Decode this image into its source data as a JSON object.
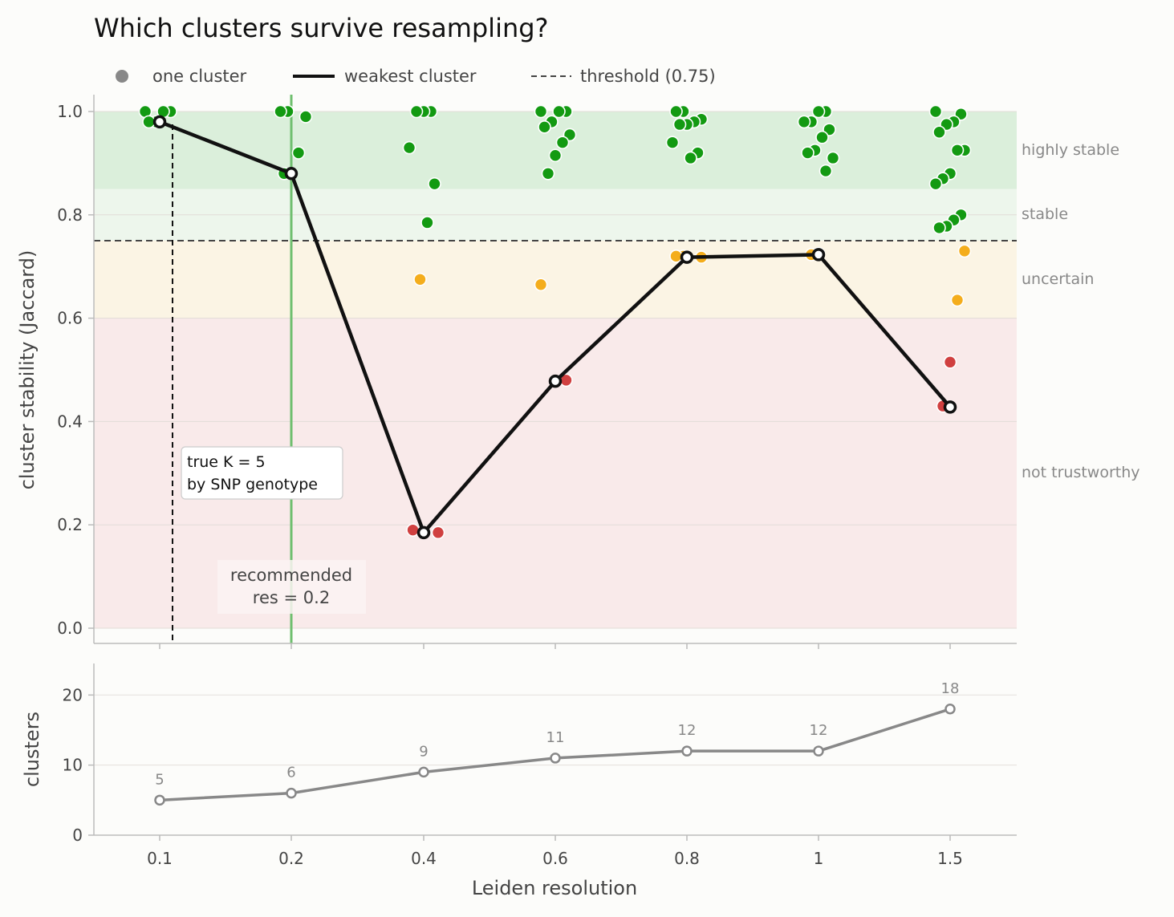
{
  "chart_data": {
    "type": "scatter",
    "title": "Which clusters survive resampling?",
    "legend": {
      "placement": "top-left",
      "entries": [
        {
          "label": "one cluster",
          "marker": "dot"
        },
        {
          "label": "weakest cluster",
          "marker": "line"
        },
        {
          "label": "threshold (0.75)",
          "marker": "dashed"
        }
      ]
    },
    "x_categories": [
      "0.1",
      "0.2",
      "0.4",
      "0.6",
      "0.8",
      "1",
      "1.5"
    ],
    "xlabel": "Leiden resolution",
    "top_panel": {
      "ylabel": "cluster stability (Jaccard)",
      "ylim": [
        0,
        1
      ],
      "yticks": [
        "0.0",
        "0.2",
        "0.4",
        "0.6",
        "0.8",
        "1.0"
      ],
      "threshold": 0.75,
      "bands": [
        {
          "label": "highly stable",
          "from": 0.85,
          "to": 1.0,
          "color": "#dbefdb"
        },
        {
          "label": "stable",
          "from": 0.75,
          "to": 0.85,
          "color": "#edf6ec"
        },
        {
          "label": "uncertain",
          "from": 0.6,
          "to": 0.75,
          "color": "#fbf4e4"
        },
        {
          "label": "not trustworthy",
          "from": 0.0,
          "to": 0.6,
          "color": "#f9eaea"
        }
      ],
      "clusters": [
        [
          1.0,
          1.0,
          1.0,
          0.98,
          0.98
        ],
        [
          1.0,
          1.0,
          0.99,
          0.92,
          0.88,
          0.88
        ],
        [
          1.0,
          1.0,
          1.0,
          0.93,
          0.86,
          0.785,
          0.675,
          0.19,
          0.185
        ],
        [
          1.0,
          1.0,
          1.0,
          0.98,
          0.97,
          0.955,
          0.94,
          0.915,
          0.88,
          0.665,
          0.48
        ],
        [
          1.0,
          1.0,
          0.985,
          0.98,
          0.975,
          0.975,
          0.94,
          0.92,
          0.91,
          0.72,
          0.72,
          0.718
        ],
        [
          1.0,
          1.0,
          0.98,
          0.98,
          0.965,
          0.95,
          0.925,
          0.92,
          0.91,
          0.885,
          0.725,
          0.723
        ],
        [
          1.0,
          0.995,
          0.98,
          0.975,
          0.96,
          0.925,
          0.925,
          0.88,
          0.87,
          0.86,
          0.8,
          0.79,
          0.778,
          0.775,
          0.73,
          0.635,
          0.515,
          0.43
        ]
      ],
      "weakest": [
        0.98,
        0.88,
        0.185,
        0.478,
        0.718,
        0.723,
        0.428
      ],
      "recommended_index": 1,
      "recommended_label": [
        "recommended",
        "res = 0.2"
      ],
      "true_k_annotation": [
        "true K = 5",
        "by SNP genotype"
      ]
    },
    "bottom_panel": {
      "ylabel": "clusters",
      "ylim": [
        0,
        24.5
      ],
      "yticks": [
        "0",
        "10",
        "20"
      ],
      "counts": [
        5,
        6,
        9,
        11,
        12,
        12,
        18
      ]
    },
    "colors": {
      "highly_stable": "#139a12",
      "stable": "#139a12",
      "uncertain": "#f4ad1c",
      "not_trustworthy": "#d04040",
      "weakest_line": "#111111",
      "threshold": "#444444",
      "recommended": "#6fbf6f",
      "counts_line": "#888888"
    }
  }
}
